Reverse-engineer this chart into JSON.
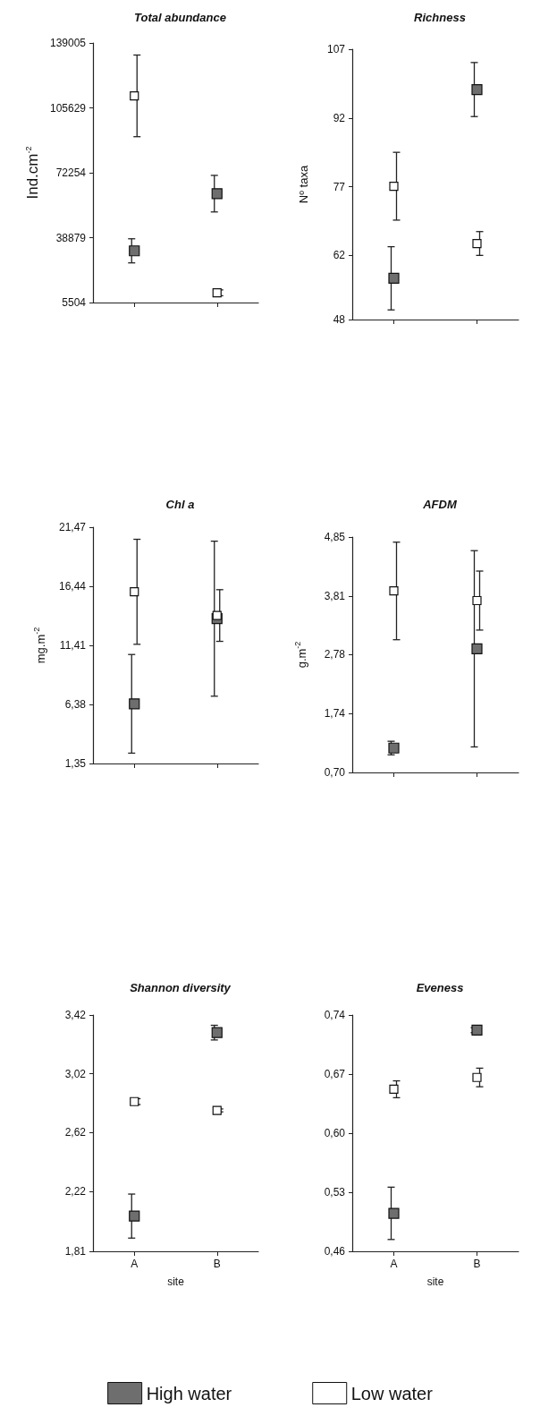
{
  "chart_data": [
    {
      "type": "scatter",
      "title": "Total abundance",
      "ylabel": "Ind.cm$^{-2}$",
      "categories": [
        null,
        null
      ],
      "marker": "square",
      "tick_labels": "y",
      "ylim": [
        5504,
        139005
      ],
      "yticks": [
        5504,
        38879,
        72254,
        105629,
        139005
      ],
      "series": [
        {
          "color": "#6e6e6e",
          "values": [
            32100,
            61500
          ],
          "errors": [
            6200,
            9400
          ]
        },
        {
          "color": "#ffffff",
          "values": [
            111800,
            10500
          ],
          "errors": [
            21000,
            1500
          ]
        }
      ]
    },
    {
      "type": "scatter",
      "title": "Richness",
      "ylabel": "Nº taxa",
      "categories": [
        null,
        null
      ],
      "marker": "square",
      "tick_labels": "y",
      "ylim": [
        48,
        107
      ],
      "yticks": [
        48,
        62,
        77,
        92,
        107
      ],
      "series": [
        {
          "color": "#6e6e6e",
          "values": [
            57.0,
            98.2
          ],
          "errors": [
            6.9,
            5.9
          ]
        },
        {
          "color": "#ffffff",
          "values": [
            77.1,
            64.6
          ],
          "errors": [
            7.4,
            2.6
          ]
        }
      ]
    },
    {
      "type": "scatter",
      "title": "Chl a",
      "ylabel": "mg.m$^{-2}$",
      "categories": [
        null,
        null
      ],
      "marker": "square",
      "tick_labels": "y",
      "ylim": [
        1.35,
        21.47
      ],
      "yticks": [
        {
          "value": 1.35,
          "label": "1,35"
        },
        {
          "value": 6.38,
          "label": "6,38"
        },
        {
          "value": 11.41,
          "label": "11,41"
        },
        {
          "value": 16.44,
          "label": "16,44"
        },
        {
          "value": 21.47,
          "label": "21,47"
        }
      ],
      "series": [
        {
          "color": "#6e6e6e",
          "values": [
            6.43,
            13.68
          ],
          "errors": [
            4.2,
            6.6
          ]
        },
        {
          "color": "#ffffff",
          "values": [
            15.97,
            13.95
          ],
          "errors": [
            4.47,
            2.2
          ]
        }
      ]
    },
    {
      "type": "scatter",
      "title": "AFDM",
      "ylabel": "g.m$^{-2}$",
      "categories": [
        null,
        null
      ],
      "marker": "square",
      "tick_labels": "y",
      "ylim": [
        0.7,
        4.85
      ],
      "yticks": [
        {
          "value": 0.7,
          "label": "0,70"
        },
        {
          "value": 1.74,
          "label": "1,74"
        },
        {
          "value": 2.78,
          "label": "2,78"
        },
        {
          "value": 3.81,
          "label": "3,81"
        },
        {
          "value": 4.85,
          "label": "4,85"
        }
      ],
      "series": [
        {
          "color": "#6e6e6e",
          "values": [
            1.13,
            2.88
          ],
          "errors": [
            0.12,
            1.73
          ]
        },
        {
          "color": "#ffffff",
          "values": [
            3.9,
            3.73
          ],
          "errors": [
            0.86,
            0.52
          ]
        }
      ]
    },
    {
      "type": "scatter",
      "title": "Shannon diversity",
      "xlabel": "site",
      "categories": [
        "A",
        "B"
      ],
      "marker": "square",
      "ylim": [
        1.81,
        3.42
      ],
      "yticks": [
        {
          "value": 1.81,
          "label": "1,81"
        },
        {
          "value": 2.22,
          "label": "2,22"
        },
        {
          "value": 2.62,
          "label": "2,62"
        },
        {
          "value": 3.02,
          "label": "3,02"
        },
        {
          "value": 3.42,
          "label": "3,42"
        }
      ],
      "series": [
        {
          "color": "#6e6e6e",
          "values": [
            2.05,
            3.3
          ],
          "errors": [
            0.15,
            0.05
          ]
        },
        {
          "color": "#ffffff",
          "values": [
            2.83,
            2.77
          ],
          "errors": [
            0.02,
            0.01
          ]
        }
      ]
    },
    {
      "type": "scatter",
      "title": "Eveness",
      "xlabel": "site",
      "categories": [
        "A",
        "B"
      ],
      "marker": "square",
      "legend": "bottom",
      "ylim": [
        0.46,
        0.74
      ],
      "yticks": [
        {
          "value": 0.46,
          "label": "0,46"
        },
        {
          "value": 0.53,
          "label": "0,53"
        },
        {
          "value": 0.6,
          "label": "0,60"
        },
        {
          "value": 0.67,
          "label": "0,67"
        },
        {
          "value": 0.74,
          "label": "0,74"
        }
      ],
      "series": [
        {
          "name": "High water",
          "color": "#6e6e6e",
          "values": [
            0.505,
            0.722
          ],
          "errors": [
            0.031,
            0.003
          ]
        },
        {
          "name": "Low water",
          "color": "#ffffff",
          "values": [
            0.652,
            0.666
          ],
          "errors": [
            0.01,
            0.011
          ]
        }
      ]
    }
  ]
}
